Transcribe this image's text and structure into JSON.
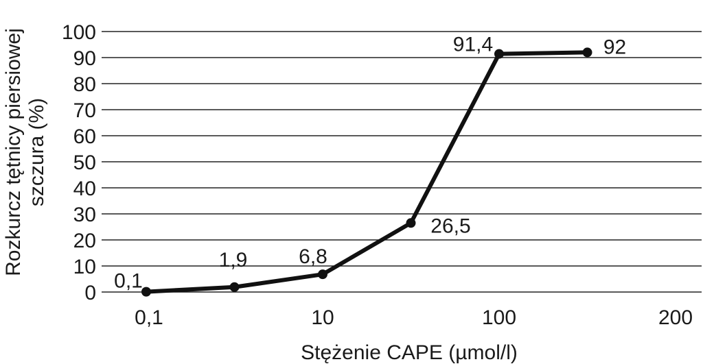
{
  "chart_data": {
    "type": "line",
    "x_categories": [
      "0,1",
      "10",
      "100",
      "200"
    ],
    "y_ticks": [
      "0",
      "10",
      "20",
      "30",
      "40",
      "50",
      "60",
      "70",
      "80",
      "90",
      "100"
    ],
    "ylim": [
      0,
      100
    ],
    "grid": "horizontal",
    "xlabel": "Stężenie CAPE (µmol/l)",
    "ylabel_lines": [
      "Rozkurcz tętnicy piersiowej",
      "szczura (%)"
    ],
    "series": [
      {
        "points": [
          {
            "x_index": 0.0,
            "y": 0.1,
            "label": "0,1"
          },
          {
            "x_index": 0.5,
            "y": 1.9,
            "label": "1,9"
          },
          {
            "x_index": 1.0,
            "y": 6.8,
            "label": "6,8"
          },
          {
            "x_index": 1.5,
            "y": 26.5,
            "label": "26,5"
          },
          {
            "x_index": 2.0,
            "y": 91.4,
            "label": "91,4"
          },
          {
            "x_index": 2.5,
            "y": 92,
            "label": "92"
          }
        ]
      }
    ]
  }
}
